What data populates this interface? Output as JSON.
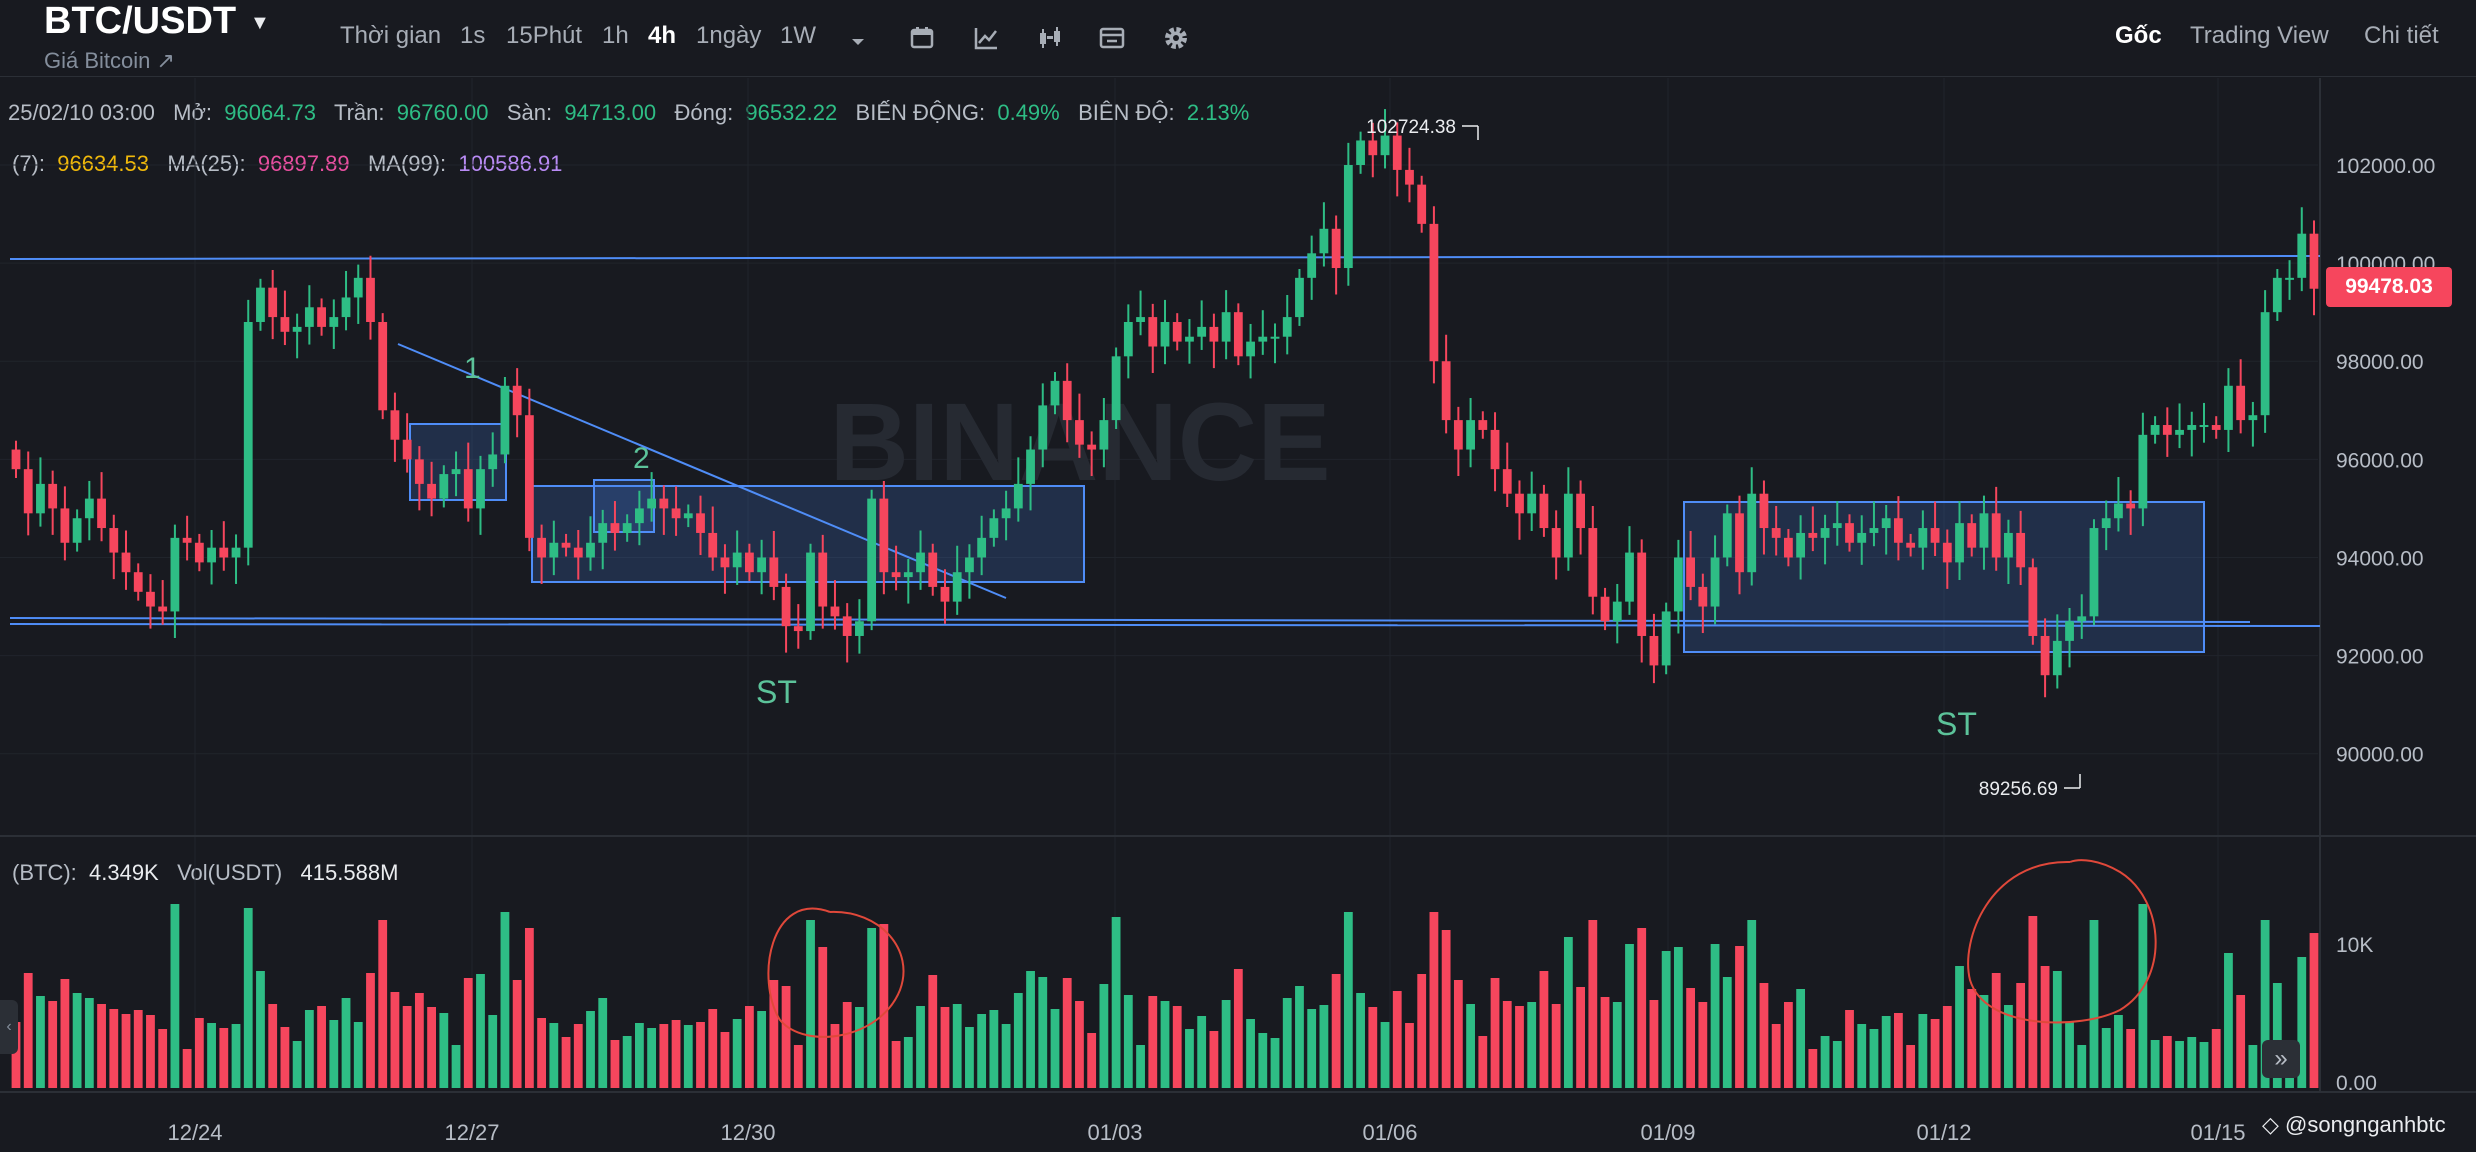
{
  "header": {
    "symbol": "BTC/USDT",
    "subtitle": "Giá Bitcoin ↗",
    "timeframes": [
      "Thời gian",
      "1s",
      "15Phút",
      "1h",
      "4h",
      "1ngày",
      "1W"
    ],
    "active_timeframe": "4h",
    "toolbar_icons": [
      "chevron-down-icon",
      "calendar-icon",
      "indicator-icon",
      "candles-icon",
      "layout-icon",
      "gear-icon"
    ],
    "view_tabs": [
      "Gốc",
      "Trading View",
      "Chi tiết"
    ],
    "active_view_tab": "Gốc"
  },
  "ohlc": {
    "date": "25/02/10 03:00",
    "open_label": "Mở:",
    "open": "96064.73",
    "high_label": "Trần:",
    "high": "96760.00",
    "low_label": "Sàn:",
    "low": "94713.00",
    "close_label": "Đóng:",
    "close": "96532.22",
    "change_label": "BIẾN ĐỘNG:",
    "change": "0.49%",
    "amp_label": "BIÊN ĐỘ:",
    "amp": "2.13%"
  },
  "ma": {
    "ma7_label": "(7):",
    "ma7": "96634.53",
    "ma25_label": "MA(25):",
    "ma25": "96897.89",
    "ma99_label": "MA(99):",
    "ma99": "100586.91"
  },
  "volume_info": {
    "btc_label": "(BTC):",
    "btc": "4.349K",
    "usdt_label": "Vol(USDT)",
    "usdt": "415.588M"
  },
  "current_price": "99478.03",
  "marks": {
    "high": "102724.38",
    "low": "89256.69"
  },
  "annotations": {
    "one": "1",
    "two": "2",
    "st1": "ST",
    "st2": "ST"
  },
  "watermark": "BINANCE",
  "author": "@songnganhbtc",
  "colors": {
    "up": "#2ebd85",
    "down": "#f6465d",
    "background": "#181a20",
    "line": "#4f8df7"
  },
  "chart_data": {
    "type": "candlestick",
    "y_ticks": [
      "102000.00",
      "100000.00",
      "98000.00",
      "96000.00",
      "94000.00",
      "92000.00",
      "90000.00"
    ],
    "ylim": [
      88500,
      104500
    ],
    "x_ticks": [
      "12/24",
      "12/27",
      "12/30",
      "01/03",
      "01/06",
      "01/09",
      "01/12",
      "01/15"
    ],
    "volume_ticks": [
      "10K",
      "0.00"
    ],
    "closes": [
      95800,
      94900,
      95500,
      95000,
      94300,
      94800,
      95200,
      94600,
      94100,
      93700,
      93300,
      93000,
      92900,
      94400,
      94300,
      93900,
      94200,
      94000,
      94200,
      98800,
      99500,
      98900,
      98600,
      98700,
      99100,
      98700,
      98900,
      99300,
      99700,
      98800,
      97000,
      96400,
      96000,
      95500,
      95200,
      95700,
      95800,
      95000,
      95800,
      96100,
      97500,
      96900,
      94400,
      94000,
      94300,
      94200,
      94000,
      94300,
      94700,
      94500,
      94700,
      95000,
      95200,
      95000,
      94800,
      94900,
      94500,
      94000,
      93800,
      94100,
      93700,
      94000,
      93400,
      92600,
      92500,
      94100,
      93000,
      92800,
      92400,
      92700,
      95200,
      93700,
      93600,
      93700,
      94100,
      93400,
      93100,
      93700,
      94000,
      94400,
      94800,
      95000,
      95500,
      96200,
      97100,
      97600,
      96800,
      96300,
      96200,
      96800,
      98100,
      98800,
      98900,
      98300,
      98800,
      98400,
      98500,
      98700,
      98400,
      99000,
      98100,
      98400,
      98500,
      98500,
      98900,
      99700,
      100200,
      100700,
      99900,
      102000,
      102500,
      102200,
      102600,
      101900,
      101600,
      100800,
      98000,
      96800,
      96200,
      96800,
      96600,
      95800,
      95300,
      94900,
      95300,
      94600,
      94000,
      95300,
      94600,
      93200,
      92700,
      93100,
      94100,
      92400,
      91800,
      92900,
      94000,
      93400,
      93000,
      94000,
      94900,
      93700,
      95300,
      94600,
      94400,
      94000,
      94500,
      94400,
      94600,
      94700,
      94300,
      94500,
      94600,
      94800,
      94300,
      94200,
      94600,
      94300,
      93900,
      94700,
      94200,
      94900,
      94000,
      94500,
      93800,
      92400,
      91600,
      92300,
      92700,
      92800,
      94600,
      94800,
      95100,
      95000,
      96500,
      96700,
      96500,
      96600,
      96700,
      96700,
      96600,
      97500,
      96800,
      96900,
      99000,
      99700,
      99700,
      100600,
      99478
    ]
  }
}
